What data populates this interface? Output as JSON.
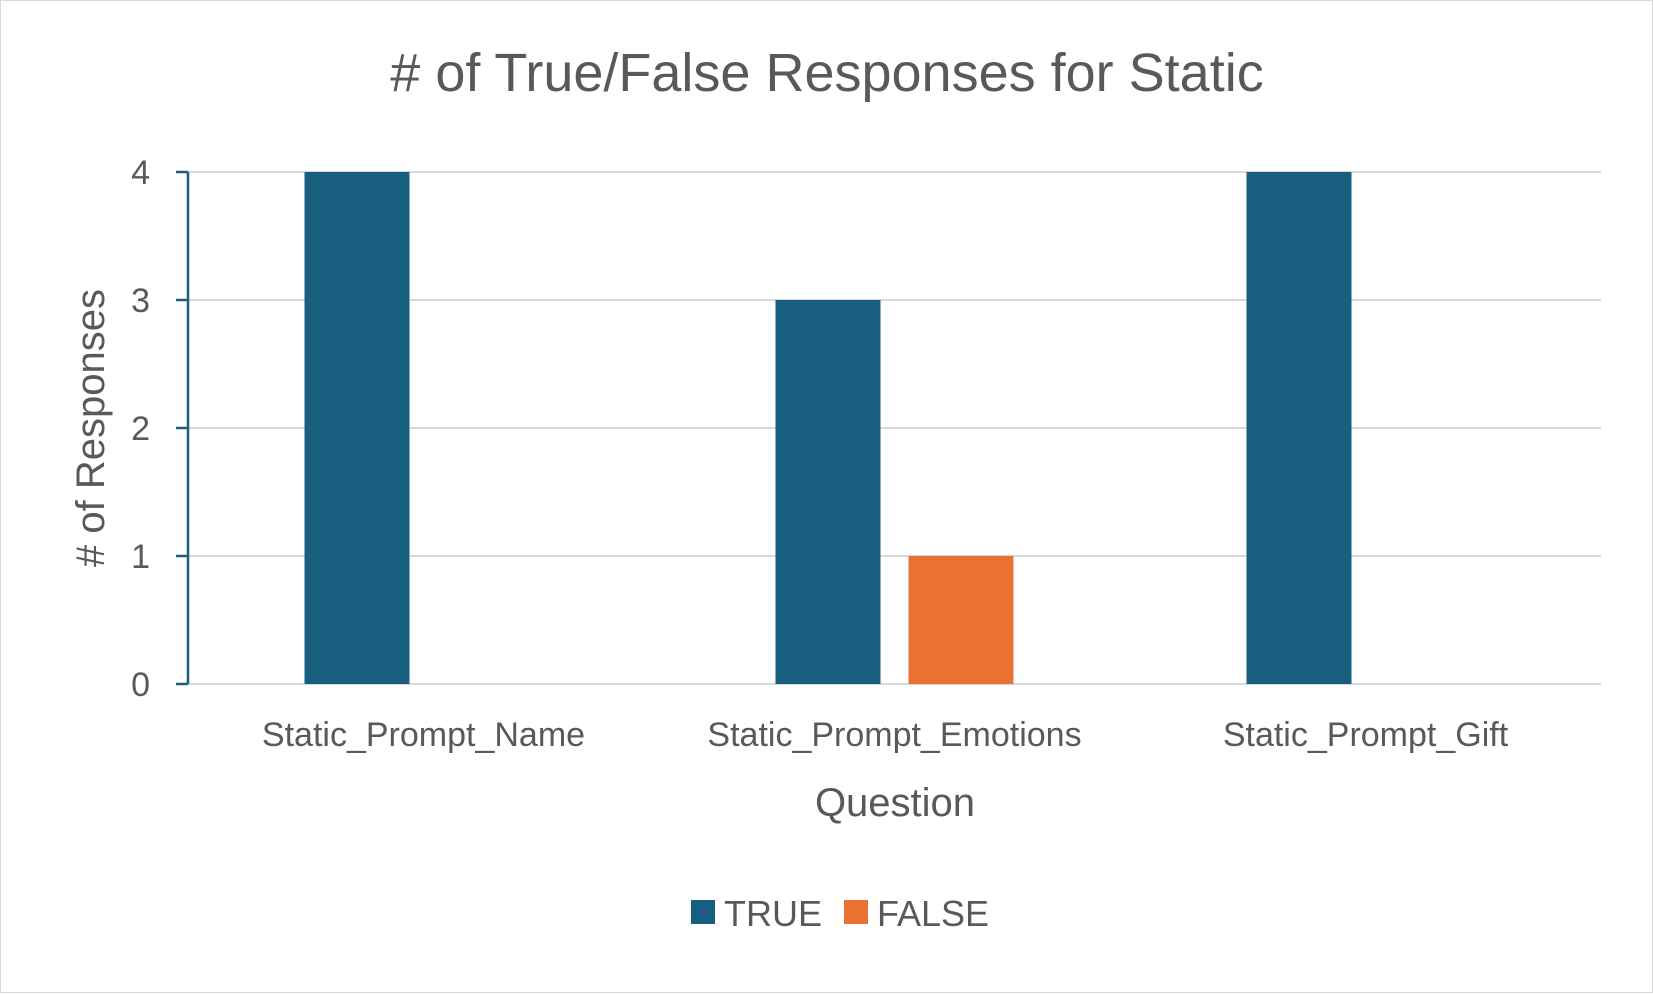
{
  "chart_data": {
    "type": "bar",
    "title": "# of True/False Responses for Static",
    "xlabel": "Question",
    "ylabel": "# of Responses",
    "categories": [
      "Static_Prompt_Name",
      "Static_Prompt_Emotions",
      "Static_Prompt_Gift"
    ],
    "series": [
      {
        "name": "TRUE",
        "values": [
          4,
          3,
          4
        ],
        "color": "#175e7f"
      },
      {
        "name": "FALSE",
        "values": [
          0,
          1,
          0
        ],
        "color": "#e97132"
      }
    ],
    "ylim": [
      0,
      4
    ],
    "yticks": [
      "0",
      "1",
      "2",
      "3",
      "4"
    ],
    "grid": true,
    "legend_position": "bottom",
    "colors": {
      "gridline": "#d9d9d9",
      "axis_line": "#175e7f",
      "text": "#595959"
    }
  }
}
